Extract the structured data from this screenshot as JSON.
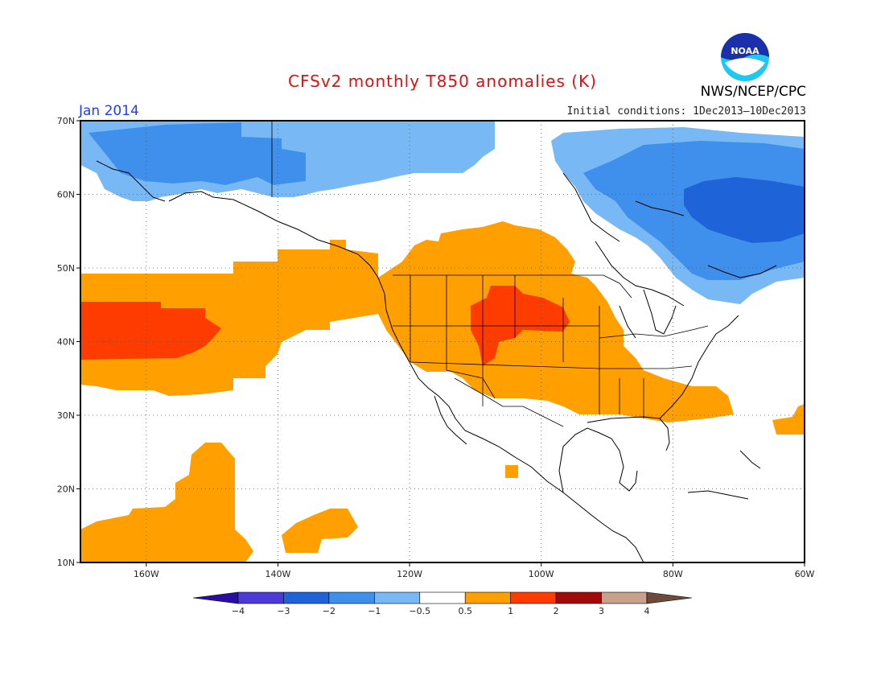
{
  "title": "CFSv2 monthly T850 anomalies (K)",
  "valid_month": "Jan 2014",
  "initial_conditions": "Initial conditions: 1Dec2013—10Dec2013",
  "agency": "NWS/NCEP/CPC",
  "logo_text": "NOAA",
  "map": {
    "lon_range": [
      -170,
      -60
    ],
    "lat_range": [
      10,
      70
    ],
    "lon_ticks": [
      {
        "value": -160,
        "label": "160W"
      },
      {
        "value": -140,
        "label": "140W"
      },
      {
        "value": -120,
        "label": "120W"
      },
      {
        "value": -100,
        "label": "100W"
      },
      {
        "value": -80,
        "label": "80W"
      },
      {
        "value": -60,
        "label": "60W"
      }
    ],
    "lat_ticks": [
      {
        "value": 10,
        "label": "10N"
      },
      {
        "value": 20,
        "label": "20N"
      },
      {
        "value": 30,
        "label": "30N"
      },
      {
        "value": 40,
        "label": "40N"
      },
      {
        "value": 50,
        "label": "50N"
      },
      {
        "value": 60,
        "label": "60N"
      },
      {
        "value": 70,
        "label": "70N"
      }
    ],
    "grid": "dotted"
  },
  "colorbar": {
    "colors": [
      "#2a0ea0",
      "#4d3ad6",
      "#1f63d8",
      "#3f90ec",
      "#78b8f4",
      "#ffffff",
      "#ffa000",
      "#ff3c00",
      "#a00a0a",
      "#c9a08c",
      "#6e4a3a"
    ],
    "labels": [
      "−4",
      "−3",
      "−2",
      "−1",
      "−0.5",
      "0.5",
      "1",
      "2",
      "3",
      "4"
    ]
  },
  "anomaly_regions": [
    {
      "level": "0.5 to 1",
      "color": "#ffa000",
      "area": "Central and eastern North Pacific band, western & central United States, southeastern US"
    },
    {
      "level": "0.5 to 1",
      "color": "#ffa000",
      "area": "Subtropical Pacific near Hawaii"
    },
    {
      "level": "1 to 2",
      "color": "#ff3c00",
      "area": "North Pacific near 160W-150W, 40N-45N"
    },
    {
      "level": "1 to 2",
      "color": "#ff3c00",
      "area": "Northern Rockies and Northern Plains"
    },
    {
      "level": "-1 to -0.5",
      "color": "#78b8f4",
      "area": "Alaska / Bering region and eastern Canada"
    },
    {
      "level": "-2 to -1",
      "color": "#3f90ec",
      "area": "Alaska interior and Hudson Bay / Quebec"
    },
    {
      "level": "-3 to -2",
      "color": "#1f63d8",
      "area": "Northern Quebec / Labrador"
    }
  ]
}
